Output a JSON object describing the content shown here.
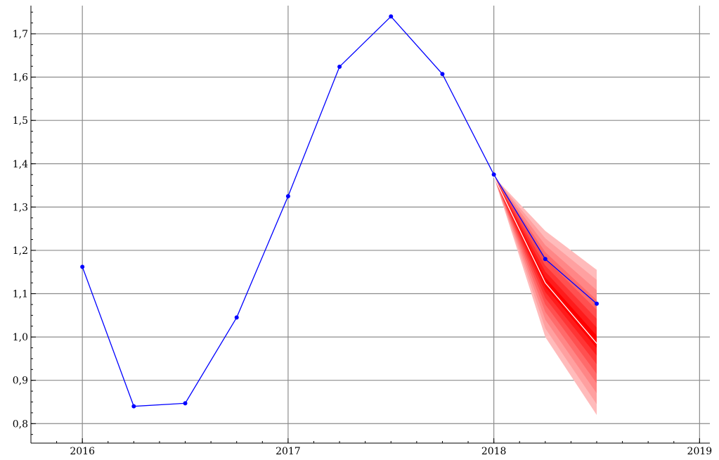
{
  "chart_data": {
    "type": "line",
    "title": "",
    "xlabel": "",
    "ylabel": "",
    "xlim": [
      2015.75,
      2019.05
    ],
    "ylim": [
      0.755,
      1.765
    ],
    "grid": true,
    "legend": "none",
    "x_ticks": [
      {
        "value": 2016,
        "label": "2016"
      },
      {
        "value": 2017,
        "label": "2017"
      },
      {
        "value": 2018,
        "label": "2018"
      },
      {
        "value": 2019,
        "label": "2019"
      }
    ],
    "y_ticks": [
      {
        "value": 0.8,
        "label": "0,8"
      },
      {
        "value": 0.9,
        "label": "0,9"
      },
      {
        "value": 1.0,
        "label": "1,0"
      },
      {
        "value": 1.1,
        "label": "1,1"
      },
      {
        "value": 1.2,
        "label": "1,2"
      },
      {
        "value": 1.3,
        "label": "1,3"
      },
      {
        "value": 1.4,
        "label": "1,4"
      },
      {
        "value": 1.5,
        "label": "1,5"
      },
      {
        "value": 1.6,
        "label": "1,6"
      },
      {
        "value": 1.7,
        "label": "1,7"
      }
    ],
    "x_minor_step": 0.125,
    "y_minor_step": 0.025,
    "series": [
      {
        "color": "#0000ff",
        "x": [
          2016.0,
          2016.25,
          2016.5,
          2016.75,
          2017.0,
          2017.25,
          2017.5,
          2017.75,
          2018.0,
          2018.25,
          2018.5
        ],
        "y": [
          1.162,
          0.84,
          0.847,
          1.045,
          1.325,
          1.624,
          1.74,
          1.607,
          1.375,
          1.18,
          1.077
        ]
      }
    ],
    "forecast": {
      "color_center": "#ff0000",
      "color_outer": "#ffbbbb",
      "median_color": "#ffffff",
      "x": [
        2018.0,
        2018.25,
        2018.5
      ],
      "median": [
        1.37,
        1.125,
        0.985
      ],
      "bands": [
        {
          "lower": [
            1.37,
            1.0,
            0.82
          ],
          "upper": [
            1.37,
            1.245,
            1.155
          ]
        },
        {
          "lower": [
            1.37,
            1.02,
            0.845
          ],
          "upper": [
            1.37,
            1.228,
            1.132
          ]
        },
        {
          "lower": [
            1.37,
            1.04,
            0.87
          ],
          "upper": [
            1.37,
            1.212,
            1.108
          ]
        },
        {
          "lower": [
            1.37,
            1.058,
            0.893
          ],
          "upper": [
            1.37,
            1.196,
            1.085
          ]
        },
        {
          "lower": [
            1.37,
            1.075,
            0.915
          ],
          "upper": [
            1.37,
            1.18,
            1.063
          ]
        },
        {
          "lower": [
            1.37,
            1.09,
            0.937
          ],
          "upper": [
            1.37,
            1.165,
            1.042
          ]
        },
        {
          "lower": [
            1.37,
            1.104,
            0.957
          ],
          "upper": [
            1.37,
            1.151,
            1.022
          ]
        },
        {
          "lower": [
            1.37,
            1.116,
            0.975
          ],
          "upper": [
            1.37,
            1.137,
            1.003
          ]
        }
      ]
    }
  }
}
